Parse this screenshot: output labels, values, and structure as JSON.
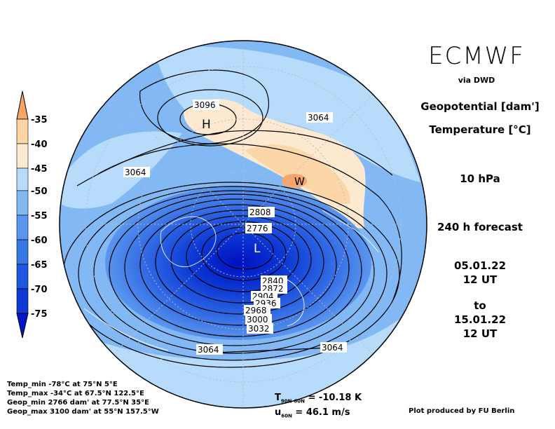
{
  "header": {
    "title": "ECMWF",
    "source": "via DWD"
  },
  "fields": {
    "geopotential": "Geopotential [dam']",
    "temperature": "Temperature [°C]"
  },
  "level": "10 hPa",
  "forecast": "240 h forecast",
  "init": {
    "date": "05.01.22",
    "time": "12 UT"
  },
  "to_label": "to",
  "valid": {
    "date": "15.01.22",
    "time": "12 UT"
  },
  "colorbar": {
    "ticks": [
      "-35",
      "-40",
      "-45",
      "-50",
      "-55",
      "-60",
      "-65",
      "-70",
      "-75"
    ],
    "colors": [
      "#f7a56a",
      "#fbd7a8",
      "#fde9cf",
      "#b7dcfb",
      "#82b9f5",
      "#5a96ee",
      "#3877e6",
      "#1f58de",
      "#0f3ad4",
      "#0018c8"
    ]
  },
  "contour_labels": [
    "3096",
    "3064",
    "3064",
    "3064",
    "3064",
    "2808",
    "2776",
    "2840",
    "2872",
    "2904",
    "2936",
    "2968",
    "3000",
    "3032"
  ],
  "markers": {
    "high": "H",
    "warm": "W",
    "low": "L"
  },
  "stats": [
    "Temp_min -78°C at 75°N 5°E",
    "Temp_max -34°C at 67.5°N 122.5°E",
    "Geop_min 2766 dam' at 77.5°N 35°E",
    "Geop_max 3100 dam' at 55°N 157.5°W"
  ],
  "indices": {
    "t_label": "T",
    "t_sub": "90N-60N",
    "t_value": "= -10.18 K",
    "u_label": "u",
    "u_sub": "60N",
    "u_value": "= 46.1 m/s"
  },
  "credit": "Plot produced by FU Berlin"
}
